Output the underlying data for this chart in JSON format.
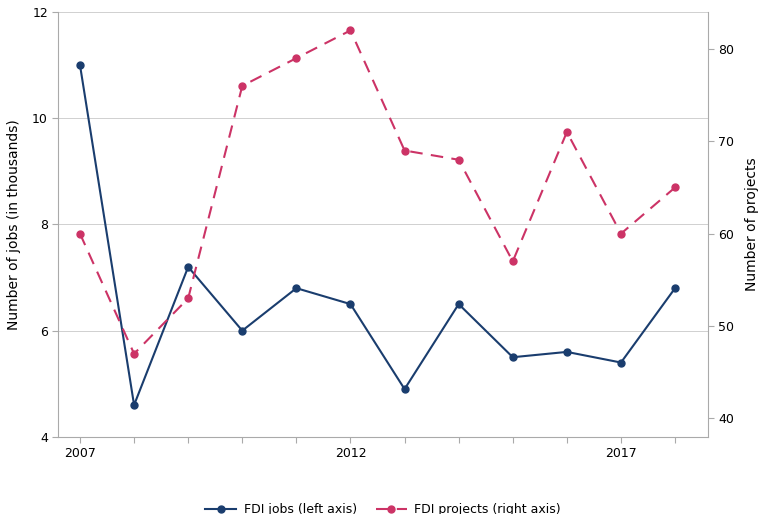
{
  "years": [
    2007,
    2008,
    2009,
    2010,
    2011,
    2012,
    2013,
    2014,
    2015,
    2016,
    2017,
    2018
  ],
  "fdi_jobs": [
    11.0,
    4.6,
    7.2,
    6.0,
    6.8,
    6.5,
    4.9,
    6.5,
    5.5,
    5.6,
    5.4,
    6.8
  ],
  "fdi_projects": [
    60.0,
    47.0,
    53.0,
    76.0,
    79.0,
    82.0,
    69.0,
    68.0,
    57.0,
    71.0,
    60.0,
    65.0
  ],
  "jobs_color": "#1a3d6e",
  "projects_color": "#cc3366",
  "ylabel_left": "Number of jobs (in thousands)",
  "ylabel_right": "Number of projects",
  "ylim_left": [
    4,
    12
  ],
  "ylim_right": [
    38,
    84
  ],
  "yticks_left": [
    4,
    6,
    8,
    10,
    12
  ],
  "yticks_right": [
    40,
    50,
    60,
    70,
    80
  ],
  "xtick_labels_show": [
    2007,
    2012,
    2017
  ],
  "legend_jobs": "FDI jobs (left axis)",
  "legend_projects": "FDI projects (right axis)",
  "background_color": "#ffffff",
  "grid_color": "#d0d0d0",
  "spine_color": "#aaaaaa",
  "figsize": [
    7.66,
    5.14
  ],
  "dpi": 100
}
